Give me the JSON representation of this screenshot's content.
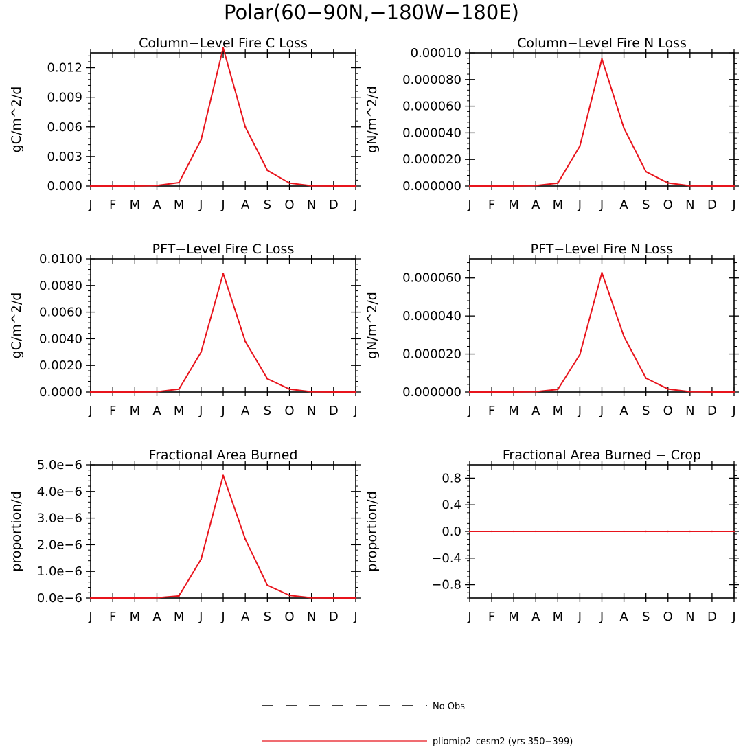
{
  "title": "Polar(60−90N,−180W−180E)",
  "colors": {
    "model": "#e8141c",
    "obs": "#000000",
    "axis": "#000000"
  },
  "legend": [
    {
      "label": "No Obs",
      "style": "dashed",
      "color": "#000000"
    },
    {
      "label": "pliomip2_cesm2 (yrs 350−399)",
      "style": "solid",
      "color": "#e8141c"
    }
  ],
  "chart_data": [
    {
      "type": "line",
      "title": "Column−Level Fire C Loss",
      "ylabel": "gC/m^2/d",
      "categories": [
        "J",
        "F",
        "M",
        "A",
        "M",
        "J",
        "J",
        "A",
        "S",
        "O",
        "N",
        "D",
        "J"
      ],
      "ylim": [
        0,
        0.0135
      ],
      "yticks": [
        0.0,
        0.003,
        0.006,
        0.009,
        0.012
      ],
      "ytick_labels": [
        "0.000",
        "0.003",
        "0.006",
        "0.009",
        "0.012"
      ],
      "series": [
        {
          "name": "pliomip2_cesm2 (yrs 350−399)",
          "values": [
            0.0,
            0.0,
            0.0,
            5e-05,
            0.00035,
            0.0047,
            0.014,
            0.006,
            0.0016,
            0.0003,
            3e-05,
            0.0,
            0.0
          ]
        }
      ]
    },
    {
      "type": "line",
      "title": "Column−Level Fire N Loss",
      "ylabel": "gN/m^2/d",
      "categories": [
        "J",
        "F",
        "M",
        "A",
        "M",
        "J",
        "J",
        "A",
        "S",
        "O",
        "N",
        "D",
        "J"
      ],
      "ylim": [
        0,
        0.0001
      ],
      "yticks": [
        0.0,
        2e-05,
        4e-05,
        6e-05,
        8e-05,
        0.0001
      ],
      "ytick_labels": [
        "0.000000",
        "0.000020",
        "0.000040",
        "0.000060",
        "0.000080",
        "0.00010"
      ],
      "series": [
        {
          "name": "pliomip2_cesm2 (yrs 350−399)",
          "values": [
            0.0,
            0.0,
            0.0,
            3e-07,
            2.2e-06,
            3e-05,
            9.55e-05,
            4.35e-05,
            1.08e-05,
            2.3e-06,
            2e-07,
            0.0,
            0.0
          ]
        }
      ]
    },
    {
      "type": "line",
      "title": "PFT−Level Fire C Loss",
      "ylabel": "gC/m^2/d",
      "categories": [
        "J",
        "F",
        "M",
        "A",
        "M",
        "J",
        "J",
        "A",
        "S",
        "O",
        "N",
        "D",
        "J"
      ],
      "ylim": [
        0,
        0.01
      ],
      "yticks": [
        0.0,
        0.002,
        0.004,
        0.006,
        0.008,
        0.01
      ],
      "ytick_labels": [
        "0.0000",
        "0.0020",
        "0.0040",
        "0.0060",
        "0.0080",
        "0.0100"
      ],
      "series": [
        {
          "name": "pliomip2_cesm2 (yrs 350−399)",
          "values": [
            0.0,
            0.0,
            0.0,
            2e-05,
            0.00022,
            0.003,
            0.0089,
            0.0038,
            0.001,
            0.00022,
            2e-05,
            0.0,
            0.0
          ]
        }
      ]
    },
    {
      "type": "line",
      "title": "PFT−Level Fire N Loss",
      "ylabel": "gN/m^2/d",
      "categories": [
        "J",
        "F",
        "M",
        "A",
        "M",
        "J",
        "J",
        "A",
        "S",
        "O",
        "N",
        "D",
        "J"
      ],
      "ylim": [
        0,
        7e-05
      ],
      "yticks": [
        0.0,
        2e-05,
        4e-05,
        6e-05
      ],
      "ytick_labels": [
        "0.000000",
        "0.000020",
        "0.000040",
        "0.000060"
      ],
      "series": [
        {
          "name": "pliomip2_cesm2 (yrs 350−399)",
          "values": [
            0.0,
            0.0,
            0.0,
            2e-07,
            1.4e-06,
            1.97e-05,
            6.27e-05,
            2.92e-05,
            7.3e-06,
            1.6e-06,
            2e-07,
            0.0,
            0.0
          ]
        }
      ]
    },
    {
      "type": "line",
      "title": "Fractional Area Burned",
      "ylabel": "proportion/d",
      "categories": [
        "J",
        "F",
        "M",
        "A",
        "M",
        "J",
        "J",
        "A",
        "S",
        "O",
        "N",
        "D",
        "J"
      ],
      "ylim": [
        0,
        5e-06
      ],
      "yticks": [
        0.0,
        1e-06,
        2e-06,
        3e-06,
        4e-06,
        5e-06
      ],
      "ytick_labels": [
        "0.0e−6",
        "1.0e−6",
        "2.0e−6",
        "3.0e−6",
        "4.0e−6",
        "5.0e−6"
      ],
      "series": [
        {
          "name": "pliomip2_cesm2 (yrs 350−399)",
          "values": [
            0.0,
            0.0,
            0.0,
            1e-08,
            8e-08,
            1.46e-06,
            4.6e-06,
            2.21e-06,
            4.8e-07,
            1e-07,
            1e-08,
            0.0,
            0.0
          ]
        }
      ]
    },
    {
      "type": "line",
      "title": "Fractional Area Burned − Crop",
      "ylabel": "proportion/d",
      "categories": [
        "J",
        "F",
        "M",
        "A",
        "M",
        "J",
        "J",
        "A",
        "S",
        "O",
        "N",
        "D",
        "J"
      ],
      "ylim": [
        -1,
        1
      ],
      "yticks": [
        -0.8,
        -0.4,
        0.0,
        0.4,
        0.8
      ],
      "ytick_labels": [
        "−0.8",
        "−0.4",
        "0.0",
        "0.4",
        "0.8"
      ],
      "series": [
        {
          "name": "pliomip2_cesm2 (yrs 350−399)",
          "values": [
            0,
            0,
            0,
            0,
            0,
            0,
            0,
            0,
            0,
            0,
            0,
            0,
            0
          ]
        }
      ]
    }
  ]
}
